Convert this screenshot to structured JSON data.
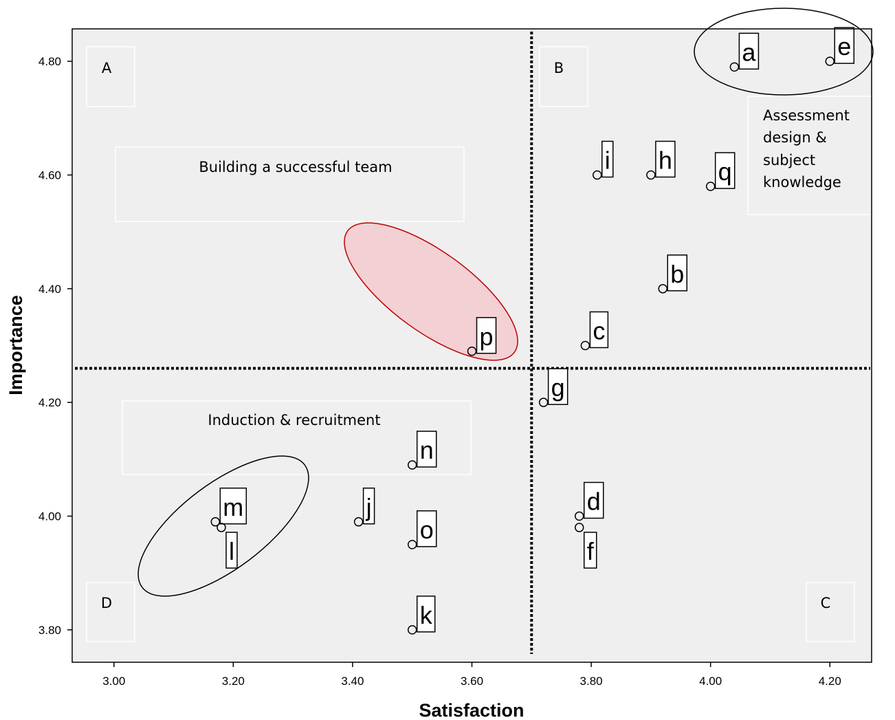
{
  "chart_data": {
    "type": "scatter",
    "x_label": "Satisfaction",
    "y_label": "Importance",
    "point_labels": [
      "a",
      "e",
      "i",
      "h",
      "q",
      "b",
      "c",
      "p",
      "g",
      "n",
      "d",
      "f",
      "j",
      "o",
      "m",
      "l",
      "k"
    ],
    "x": [
      4.04,
      4.2,
      3.81,
      3.9,
      4.0,
      3.92,
      3.79,
      3.6,
      3.72,
      3.5,
      3.78,
      3.78,
      3.41,
      3.5,
      3.17,
      3.18,
      3.5
    ],
    "values": [
      4.79,
      4.8,
      4.6,
      4.6,
      4.58,
      4.4,
      4.3,
      4.29,
      4.2,
      4.09,
      4.0,
      3.98,
      3.99,
      3.95,
      3.99,
      3.98,
      3.8
    ],
    "xlim": [
      2.93,
      4.27
    ],
    "ylim": [
      3.743,
      4.857
    ],
    "xticks": [
      {
        "value": 3.0,
        "label": "3.00"
      },
      {
        "value": 3.2,
        "label": "3.20"
      },
      {
        "value": 3.4,
        "label": "3.40"
      },
      {
        "value": 3.6,
        "label": "3.60"
      },
      {
        "value": 3.8,
        "label": "3.80"
      },
      {
        "value": 4.0,
        "label": "4.00"
      },
      {
        "value": 4.2,
        "label": "4.20"
      }
    ],
    "yticks": [
      {
        "value": 3.8,
        "label": "3.80"
      },
      {
        "value": 4.0,
        "label": "4.00"
      },
      {
        "value": 4.2,
        "label": "4.20"
      },
      {
        "value": 4.4,
        "label": "4.40"
      },
      {
        "value": 4.6,
        "label": "4.60"
      },
      {
        "value": 4.8,
        "label": "4.80"
      }
    ],
    "reference_lines": {
      "x": 3.7,
      "y": 4.26
    },
    "quadrants": [
      "A",
      "B",
      "C",
      "D"
    ],
    "annotations": [
      "Building a successful team",
      "Induction & recruitment"
    ],
    "annotation_lines": [
      "Assessment",
      "design &",
      "subject",
      "knowledge"
    ]
  }
}
